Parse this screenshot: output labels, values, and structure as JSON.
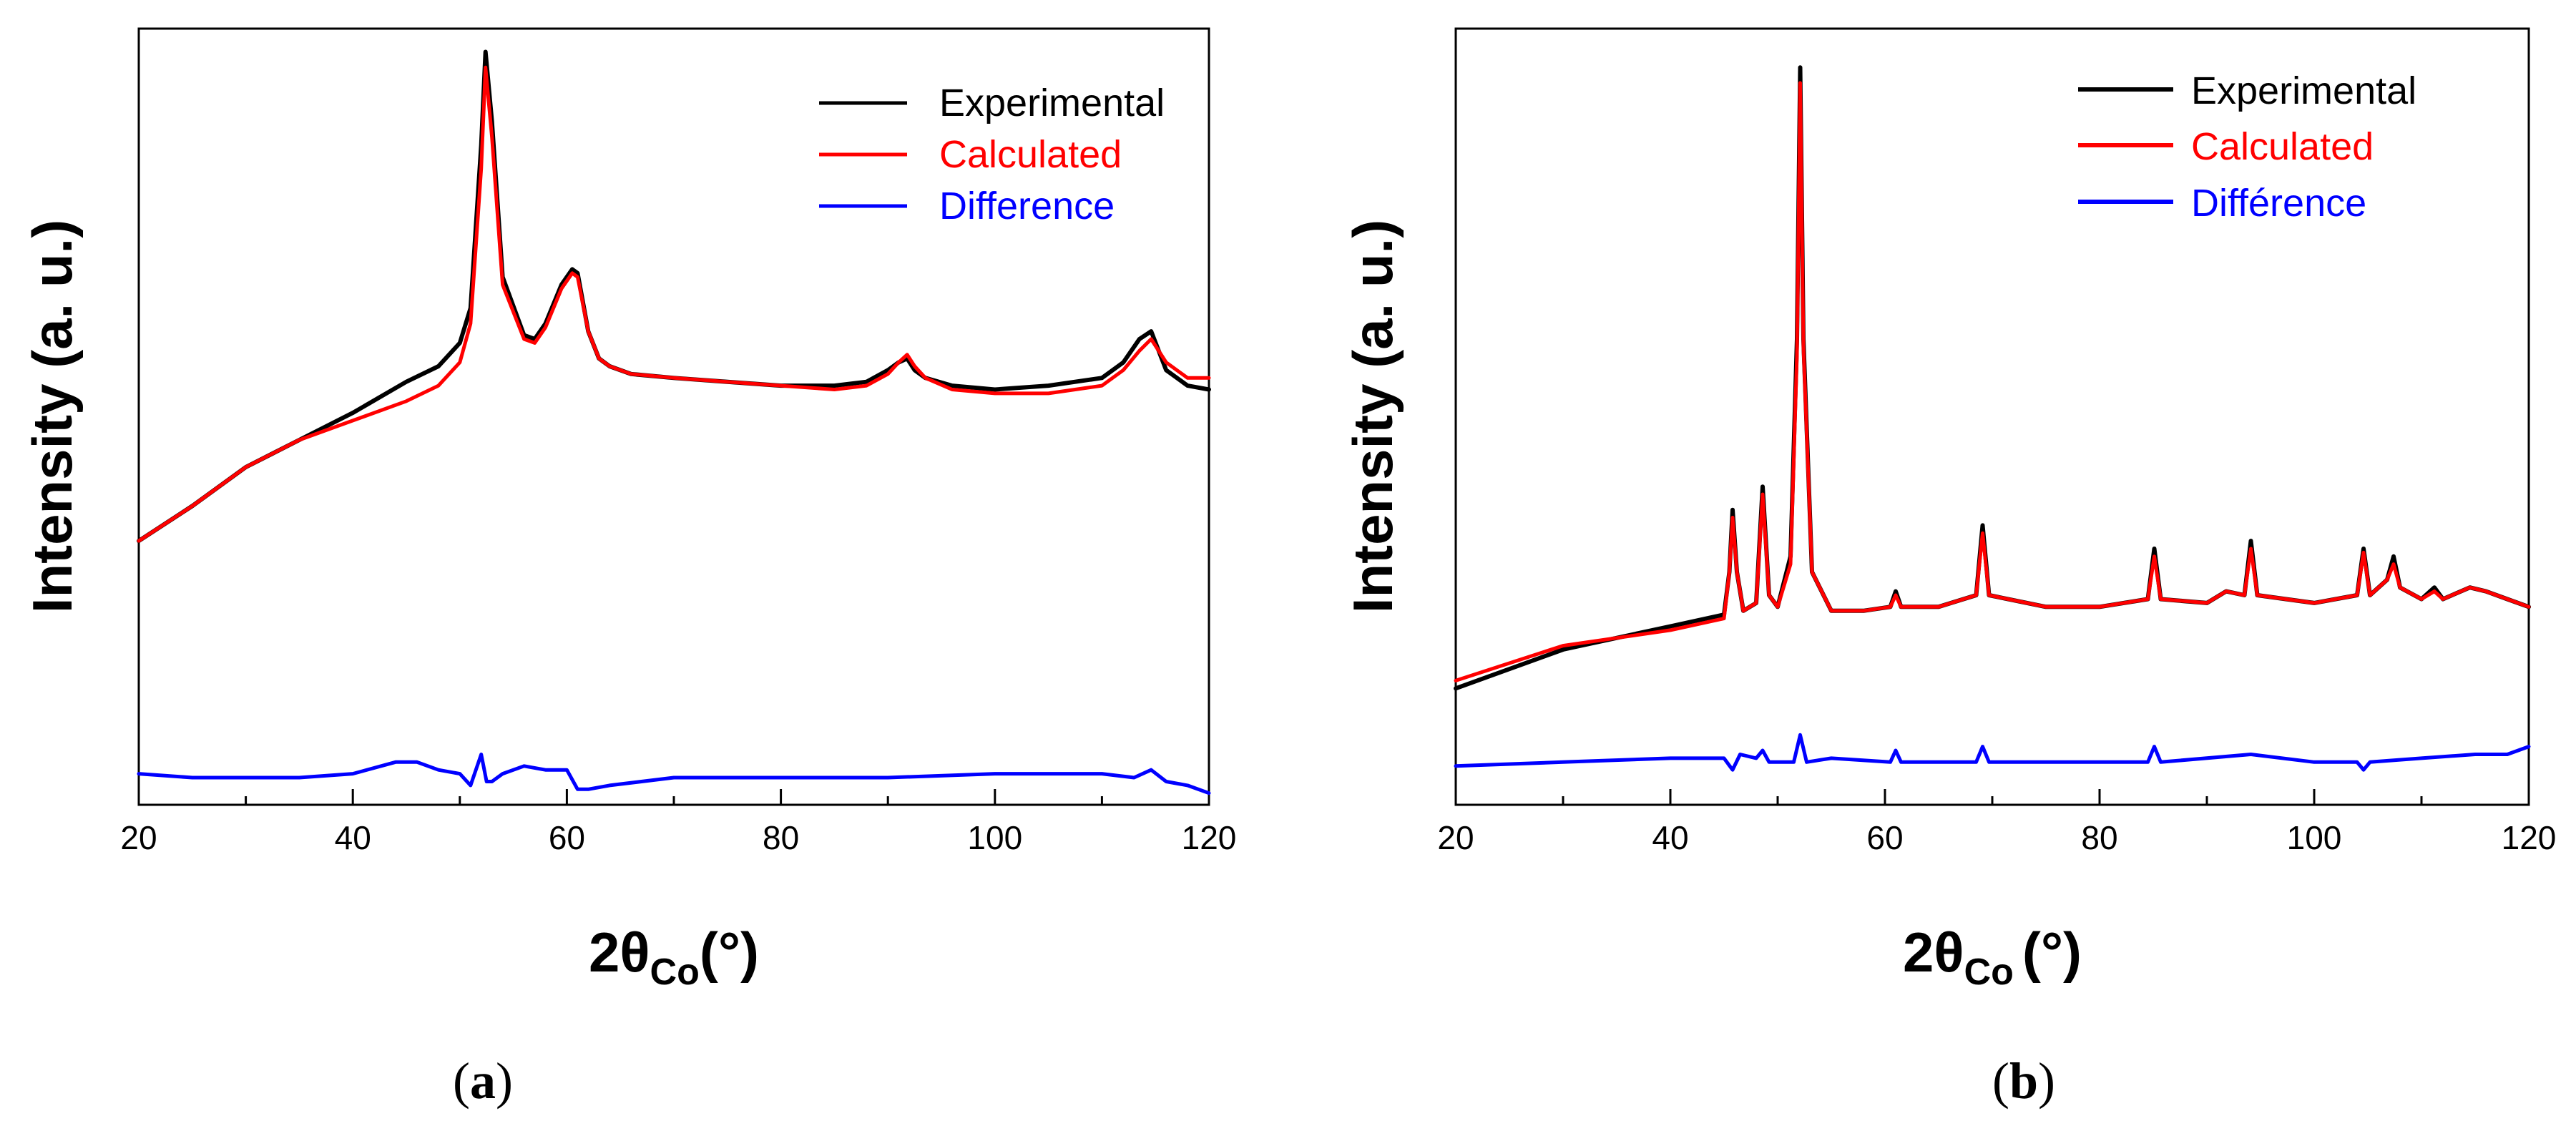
{
  "panels": [
    {
      "label_open": "(",
      "label_letter": "a",
      "label_close": ")"
    },
    {
      "label_open": "(",
      "label_letter": "b",
      "label_close": ")"
    }
  ],
  "chart_data": [
    {
      "type": "line",
      "panel": "a",
      "xlabel_main": "2θ",
      "xlabel_sub": "Co",
      "xlabel_unit": "(°)",
      "ylabel": "Intensity (a. u.)",
      "xlim": [
        20,
        120
      ],
      "ylim": [
        0,
        100
      ],
      "xticks": [
        20,
        40,
        60,
        80,
        100,
        120
      ],
      "yticks_shown": false,
      "legend_position": "top-right",
      "series": [
        {
          "name": "Experimental",
          "color": "#000000",
          "x": [
            20,
            25,
            30,
            35,
            40,
            45,
            48,
            50,
            51,
            52,
            52.4,
            53,
            54,
            56,
            57,
            58,
            59.5,
            60.5,
            61,
            62,
            63,
            64,
            66,
            70,
            75,
            80,
            85,
            88,
            90,
            91,
            91.8,
            92.5,
            93.5,
            96,
            100,
            105,
            110,
            112,
            113.5,
            114.6,
            116,
            118,
            120
          ],
          "y": [
            34,
            38.5,
            43.5,
            47,
            50.5,
            54.5,
            56.5,
            59.5,
            64,
            85,
            97,
            88,
            68,
            60.5,
            60,
            62,
            67,
            69,
            68.5,
            61,
            57.5,
            56.5,
            55.5,
            55,
            54.5,
            54,
            54,
            54.5,
            56,
            57,
            57.5,
            56,
            55,
            54,
            53.5,
            54,
            55,
            57,
            60,
            61,
            56,
            54,
            53.5
          ]
        },
        {
          "name": "Calculated",
          "color": "#ff0000",
          "x": [
            20,
            25,
            30,
            35,
            40,
            45,
            48,
            50,
            51,
            52,
            52.4,
            53,
            54,
            56,
            57,
            58,
            59.5,
            60.5,
            61,
            62,
            63,
            64,
            66,
            70,
            75,
            80,
            85,
            88,
            90,
            91,
            91.8,
            92.5,
            93.5,
            96,
            100,
            105,
            110,
            112,
            113.5,
            114.6,
            116,
            118,
            120
          ],
          "y": [
            34,
            38.5,
            43.5,
            47,
            49.5,
            52,
            54,
            57,
            62,
            82,
            95,
            86,
            67,
            60,
            59.5,
            61.5,
            66.5,
            68.5,
            68,
            61,
            57.5,
            56.5,
            55.5,
            55,
            54.5,
            54,
            53.5,
            54,
            55.5,
            57,
            58,
            56.5,
            55,
            53.5,
            53,
            53,
            54,
            56,
            58.5,
            60,
            57,
            55,
            55
          ]
        },
        {
          "name": "Difference",
          "color": "#0000ff",
          "x": [
            20,
            25,
            30,
            35,
            40,
            44,
            46,
            48,
            50,
            51,
            52,
            52.5,
            53,
            54,
            56,
            58,
            60,
            61,
            62,
            64,
            70,
            80,
            90,
            100,
            110,
            113,
            114.6,
            116,
            118,
            120
          ],
          "y": [
            4,
            3.5,
            3.5,
            3.5,
            4,
            5.5,
            5.5,
            4.5,
            4,
            2.5,
            6.5,
            3,
            3,
            4,
            5,
            4.5,
            4.5,
            2,
            2,
            2.5,
            3.5,
            3.5,
            3.5,
            4,
            4,
            3.5,
            4.5,
            3,
            2.5,
            1.5
          ]
        }
      ]
    },
    {
      "type": "line",
      "panel": "b",
      "xlabel_main": "2θ",
      "xlabel_sub": "Co",
      "xlabel_unit": "(°)",
      "ylabel": "Intensity (a. u.)",
      "xlim": [
        20,
        120
      ],
      "ylim": [
        0,
        100
      ],
      "xticks": [
        20,
        40,
        60,
        80,
        100,
        120
      ],
      "yticks_shown": false,
      "legend_position": "top-right",
      "series": [
        {
          "name": "Experimental",
          "color": "#000000",
          "x": [
            20,
            30,
            40,
            45,
            45.5,
            45.8,
            46.2,
            46.8,
            48,
            48.6,
            49.2,
            50,
            51.2,
            51.8,
            52.1,
            52.4,
            53.2,
            55,
            58,
            60.5,
            61,
            61.5,
            65,
            68.5,
            69.1,
            69.7,
            75,
            80,
            84.5,
            85.1,
            85.7,
            90,
            91.8,
            93.5,
            94.1,
            94.7,
            100,
            104,
            104.6,
            105.2,
            106.8,
            107.4,
            108,
            110,
            111.2,
            112,
            114.5,
            116,
            118,
            120
          ],
          "y": [
            15,
            20,
            23,
            24.5,
            30,
            38,
            30,
            25,
            26,
            41,
            27,
            25.5,
            32,
            60,
            95,
            60,
            30,
            25,
            25,
            25.5,
            27.5,
            25.5,
            25.5,
            27,
            36,
            27,
            25.5,
            25.5,
            26.5,
            33,
            26.5,
            26,
            27.5,
            27,
            34,
            27,
            26,
            27,
            33,
            27,
            29,
            32,
            28,
            26.5,
            28,
            26.5,
            28,
            27.5,
            26.5,
            25.5
          ]
        },
        {
          "name": "Calculated",
          "color": "#ff0000",
          "x": [
            20,
            30,
            40,
            45,
            45.5,
            45.8,
            46.2,
            46.8,
            48,
            48.6,
            49.2,
            50,
            51.2,
            51.8,
            52.1,
            52.4,
            53.2,
            55,
            58,
            60.5,
            61,
            61.5,
            65,
            68.5,
            69.1,
            69.7,
            75,
            80,
            84.5,
            85.1,
            85.7,
            90,
            91.8,
            93.5,
            94.1,
            94.7,
            100,
            104,
            104.6,
            105.2,
            106.8,
            107.4,
            108,
            110,
            111.2,
            112,
            114.5,
            116,
            118,
            120
          ],
          "y": [
            16,
            20.5,
            22.5,
            24,
            30,
            37,
            30,
            25,
            26,
            40,
            27,
            25.5,
            31,
            58,
            93,
            59,
            30,
            25,
            25,
            25.5,
            27,
            25.5,
            25.5,
            27,
            35,
            27,
            25.5,
            25.5,
            26.5,
            32,
            26.5,
            26,
            27.5,
            27,
            33,
            27,
            26,
            27,
            32.5,
            27,
            29,
            31,
            28,
            26.5,
            27.5,
            26.5,
            28,
            27.5,
            26.5,
            25.5
          ]
        },
        {
          "name": "Différence",
          "color": "#0000ff",
          "x": [
            20,
            30,
            40,
            45,
            45.8,
            46.5,
            48,
            48.6,
            49.2,
            51.5,
            52.1,
            52.7,
            55,
            60.5,
            61,
            61.5,
            68.5,
            69.1,
            69.7,
            80,
            84.5,
            85.1,
            85.7,
            94.1,
            100,
            104,
            104.6,
            105.2,
            110,
            115,
            118,
            120
          ],
          "y": [
            5,
            5.5,
            6,
            6,
            4.5,
            6.5,
            6,
            7,
            5.5,
            5.5,
            9,
            5.5,
            6,
            5.5,
            7,
            5.5,
            5.5,
            7.5,
            5.5,
            5.5,
            5.5,
            7.5,
            5.5,
            6.5,
            5.5,
            5.5,
            4.5,
            5.5,
            6,
            6.5,
            6.5,
            7.5
          ]
        }
      ]
    }
  ]
}
